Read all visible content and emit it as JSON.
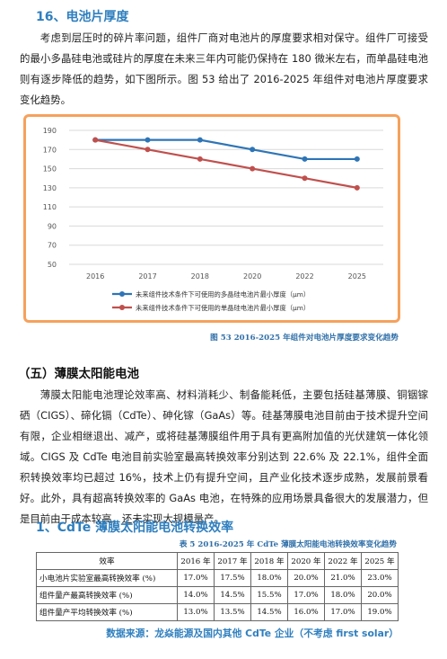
{
  "section16": {
    "title": "16、电池片厚度"
  },
  "para1": "考虑到层压时的碎片率问题，组件厂商对电池片的厚度要求相对保守。组件厂可接受的最小多晶硅电池或硅片的厚度在未来三年内可能仍保持在 180 微米左右，而单晶硅电池则有逐步降低的趋势，如下图所示。图 53 给出了 2016-2025 年组件对电池片厚度要求变化趋势。",
  "chart_data": {
    "type": "line",
    "categories": [
      "2016",
      "2017",
      "2018",
      "2020",
      "2022",
      "2025"
    ],
    "series": [
      {
        "name": "未来组件技术条件下可使用的多晶硅电池片最小厚度（μm）",
        "color": "#2e75b6",
        "values": [
          180,
          180,
          180,
          170,
          160,
          160
        ]
      },
      {
        "name": "未来组件技术条件下可使用的单晶硅电池片最小厚度（μm）",
        "color": "#c0504d",
        "values": [
          180,
          170,
          160,
          150,
          140,
          130
        ]
      }
    ],
    "y_ticks": [
      "50",
      "70",
      "90",
      "110",
      "130",
      "150",
      "170",
      "190"
    ],
    "ylim": [
      50,
      190
    ],
    "grid": true,
    "legend_position": "bottom"
  },
  "figure_caption": "图 53 2016-2025 年组件对电池片厚度要求变化趋势",
  "section5": {
    "title": "（五）薄膜太阳能电池"
  },
  "para2": "薄膜太阳能电池理论效率高、材料消耗少、制备能耗低，主要包括硅基薄膜、铜铟镓硒（CIGS）、碲化镉（CdTe）、砷化镓（GaAs）等。硅基薄膜电池目前由于技术提升空间有限，企业相继退出、减产，或将硅基薄膜组件用于具有更高附加值的光伏建筑一体化领域。CIGS 及 CdTe 电池目前实验室最高转换效率分别达到 22.6% 及 22.1%，组件全面积转换效率均已超过 16%，技术上仍有提升空间，且产业化技术逐步成熟，发展前景看好。此外，具有超高转换效率的 GaAs 电池，在特殊的应用场景具备很大的发展潜力，但是目前由于成本较高，还未实现大规模量产。",
  "section_cdte": {
    "title": "1、CdTe 薄膜太阳能电池转换效率"
  },
  "table_caption": "表 5 2016-2025 年 CdTe 薄膜太阳能电池转换效率变化趋势",
  "table": {
    "headers": [
      "效率",
      "2016 年",
      "2017 年",
      "2018 年",
      "2020 年",
      "2022 年",
      "2025 年"
    ],
    "rows": [
      {
        "label": "小电池片实验室最高转换效率 (%)",
        "values": [
          "17.0%",
          "17.5%",
          "18.0%",
          "20.0%",
          "21.0%",
          "23.0%"
        ]
      },
      {
        "label": "组件量产最高转换效率 (%)",
        "values": [
          "14.0%",
          "14.5%",
          "15.5%",
          "17.0%",
          "18.0%",
          "20.0%"
        ]
      },
      {
        "label": "组件量产平均转换效率 (%)",
        "values": [
          "13.0%",
          "13.5%",
          "14.5%",
          "16.0%",
          "17.0%",
          "19.0%"
        ]
      }
    ]
  },
  "source_note": "数据来源：龙焱能源及国内其他 CdTe 企业（不考虑 first solar）"
}
